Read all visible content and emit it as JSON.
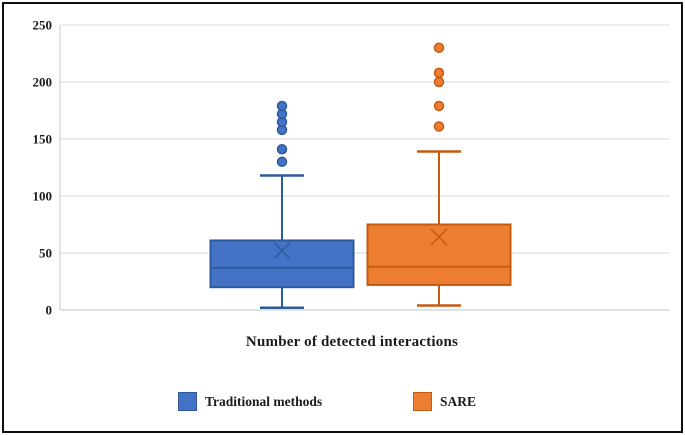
{
  "chart_data": {
    "type": "boxplot",
    "title": "",
    "xlabel": "Number of detected interactions",
    "ylabel": "",
    "ylim": [
      0,
      250
    ],
    "yticks": [
      0,
      50,
      100,
      150,
      200,
      250
    ],
    "grid": true,
    "legend_position": "bottom",
    "gridline_color": "#d9d9d9",
    "axis_line_color": "#c9c9c9",
    "text_color": "#1b1b1b",
    "series": [
      {
        "name": "Traditional methods",
        "color": "#4472C4",
        "border_color": "#2E5A9E",
        "min": 2,
        "q1": 20,
        "median": 37,
        "q3": 61,
        "max": 118,
        "mean": 52,
        "outliers": [
          130,
          141,
          158,
          165,
          172,
          179
        ]
      },
      {
        "name": "SARE",
        "color": "#ED7D31",
        "border_color": "#C55A11",
        "min": 4,
        "q1": 22,
        "median": 38,
        "q3": 75,
        "max": 139,
        "mean": 64,
        "outliers": [
          161,
          179,
          200,
          208,
          230
        ]
      }
    ]
  }
}
